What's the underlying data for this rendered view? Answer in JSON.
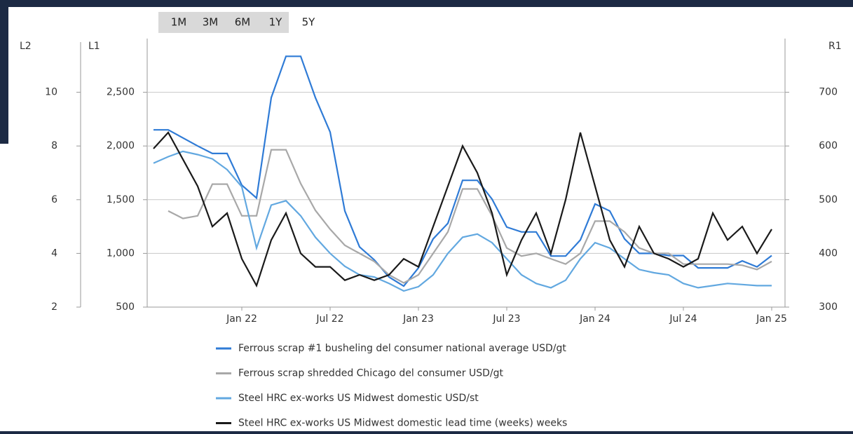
{
  "range_buttons": [
    "1M",
    "3M",
    "6M",
    "1Y",
    "5Y"
  ],
  "chart_data": {
    "type": "line",
    "ylabel": "L1",
    "y2label": "R1",
    "y3label": "L2",
    "x": [
      "2021-07",
      "2021-08",
      "2021-09",
      "2021-10",
      "2021-11",
      "2021-12",
      "2022-01",
      "2022-02",
      "2022-03",
      "2022-04",
      "2022-05",
      "2022-06",
      "2022-07",
      "2022-08",
      "2022-09",
      "2022-10",
      "2022-11",
      "2022-12",
      "2023-01",
      "2023-02",
      "2023-03",
      "2023-04",
      "2023-05",
      "2023-06",
      "2023-07",
      "2023-08",
      "2023-09",
      "2023-10",
      "2023-11",
      "2023-12",
      "2024-01",
      "2024-02",
      "2024-03",
      "2024-04",
      "2024-05",
      "2024-06",
      "2024-07",
      "2024-08",
      "2024-09",
      "2024-10",
      "2024-11",
      "2024-12",
      "2025-01"
    ],
    "xlim": [
      "2021-07",
      "2025-01"
    ],
    "xticks": [
      {
        "value": "2022-01",
        "label": "Jan 22"
      },
      {
        "value": "2022-07",
        "label": "Jul 22"
      },
      {
        "value": "2023-01",
        "label": "Jan 23"
      },
      {
        "value": "2023-07",
        "label": "Jul 23"
      },
      {
        "value": "2024-01",
        "label": "Jan 24"
      },
      {
        "value": "2024-07",
        "label": "Jul 24"
      },
      {
        "value": "2025-01",
        "label": "Jan 25"
      }
    ],
    "ylim": [
      500,
      3000
    ],
    "yticks": [
      500,
      {
        "value": 1000,
        "label": "1,000"
      },
      {
        "value": 1500,
        "label": "1,500"
      },
      {
        "value": 2000,
        "label": "2,000"
      },
      {
        "value": 2500,
        "label": "2,500"
      }
    ],
    "y2lim": [
      300,
      800
    ],
    "y2ticks": [
      300,
      400,
      500,
      600,
      700
    ],
    "y3lim": [
      2,
      12
    ],
    "y3ticks": [
      2,
      4,
      6,
      8,
      10
    ],
    "grid": true,
    "series": [
      {
        "name": "Ferrous scrap #1 busheling del consumer national average USD/gt",
        "color": "#2f7bd6",
        "axis": "y2",
        "values": [
          630,
          630,
          615,
          600,
          586,
          586,
          527,
          503,
          690,
          767,
          767,
          690,
          626,
          479,
          412,
          388,
          356,
          339,
          373,
          427,
          456,
          536,
          536,
          501,
          449,
          440,
          440,
          395,
          395,
          425,
          492,
          479,
          427,
          400,
          400,
          396,
          396,
          373,
          373,
          373,
          386,
          375,
          396
        ]
      },
      {
        "name": "Ferrous scrap shredded Chicago del consumer USD/gt",
        "color": "#a8a8a8",
        "axis": "y2",
        "values": [
          null,
          479,
          465,
          470,
          529,
          529,
          470,
          470,
          593,
          593,
          530,
          480,
          445,
          415,
          400,
          385,
          360,
          345,
          360,
          400,
          440,
          520,
          520,
          470,
          410,
          395,
          400,
          390,
          380,
          400,
          460,
          460,
          440,
          410,
          400,
          400,
          380,
          380,
          380,
          380,
          378,
          370,
          385
        ]
      },
      {
        "name": "Steel HRC ex-works US Midwest domestic USD/st",
        "color": "#62a8e0",
        "axis": "y",
        "values": [
          1840,
          1900,
          1950,
          1920,
          1880,
          1780,
          1620,
          1050,
          1450,
          1490,
          1350,
          1150,
          1000,
          880,
          800,
          780,
          720,
          650,
          690,
          800,
          1000,
          1150,
          1180,
          1100,
          950,
          800,
          720,
          680,
          750,
          950,
          1100,
          1050,
          950,
          850,
          820,
          800,
          720,
          680,
          700,
          720,
          710,
          700,
          700
        ]
      },
      {
        "name": "Steel HRC ex-works US Midwest domestic lead time (weeks) weeks",
        "color": "#1a1a1a",
        "axis": "y3",
        "values": [
          7.9,
          8.5,
          7.5,
          6.5,
          5.0,
          5.5,
          3.8,
          2.8,
          4.5,
          5.5,
          4.0,
          3.5,
          3.5,
          3.0,
          3.2,
          3.0,
          3.2,
          3.8,
          3.5,
          5.0,
          6.5,
          8.0,
          7.0,
          5.5,
          3.2,
          4.5,
          5.5,
          4.0,
          6.0,
          8.5,
          6.5,
          4.5,
          3.5,
          5.0,
          4.0,
          3.8,
          3.5,
          3.8,
          5.5,
          4.5,
          5.0,
          4.0,
          4.9
        ]
      }
    ]
  }
}
